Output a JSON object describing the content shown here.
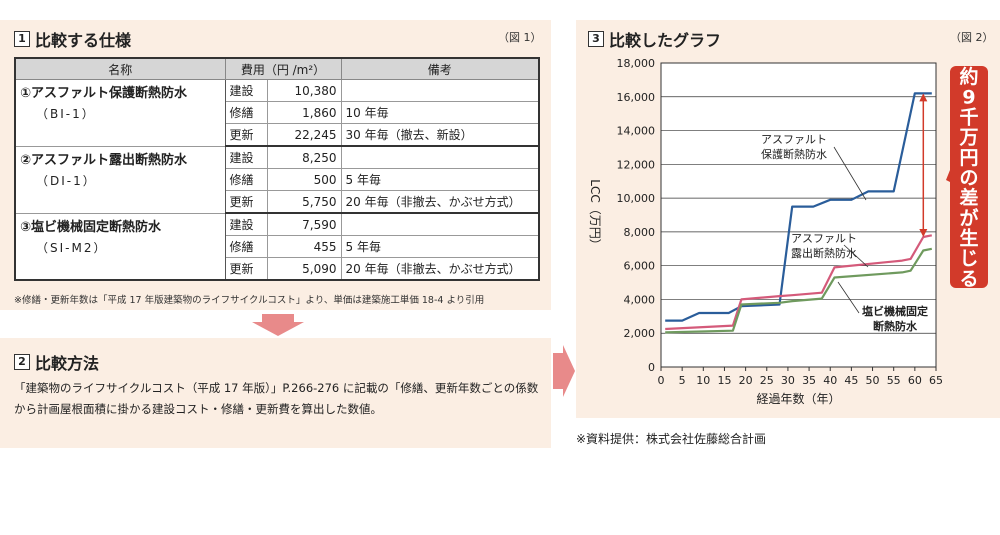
{
  "section1": {
    "number": "1",
    "title": "比較する仕様",
    "fig": "（図 1）",
    "headers": [
      "名称",
      "費用（円 /m²）",
      "備考"
    ],
    "groups": [
      {
        "name": "①アスファルト保護断熱防水",
        "code": "（BI-1）",
        "rows": [
          {
            "item": "建設",
            "cost": "10,380",
            "note": ""
          },
          {
            "item": "修繕",
            "cost": "1,860",
            "note": "10 年毎"
          },
          {
            "item": "更新",
            "cost": "22,245",
            "note": "30 年毎（撤去、新設）"
          }
        ]
      },
      {
        "name": "②アスファルト露出断熱防水",
        "code": "（DI-1）",
        "rows": [
          {
            "item": "建設",
            "cost": "8,250",
            "note": ""
          },
          {
            "item": "修繕",
            "cost": "500",
            "note": "5 年毎"
          },
          {
            "item": "更新",
            "cost": "5,750",
            "note": "20 年毎（非撤去、かぶせ方式）"
          }
        ]
      },
      {
        "name": "③塩ビ機械固定断熱防水",
        "code": "（SI-M2）",
        "rows": [
          {
            "item": "建設",
            "cost": "7,590",
            "note": ""
          },
          {
            "item": "修繕",
            "cost": "455",
            "note": "5 年毎"
          },
          {
            "item": "更新",
            "cost": "5,090",
            "note": "20 年毎（非撤去、かぶせ方式）"
          }
        ]
      }
    ],
    "footnote": "※修繕・更新年数は「平成 17 年版建築物のライフサイクルコスト」より、単価は建築施工単価 18-4 より引用"
  },
  "section2": {
    "number": "2",
    "title": "比較方法",
    "text": "「建築物のライフサイクルコスト（平成 17 年版）」P.266-276 に記載の「修繕、更新年数ごとの係数から計画屋根面積に掛かる建設コスト・修繕・更新費を算出した数値。"
  },
  "section3": {
    "number": "3",
    "title": "比較したグラフ",
    "fig": "（図 2）",
    "callout": "約9千万円の差が生じる",
    "credit": "※資料提供：株式会社佐藤総合計画"
  },
  "colors": {
    "panel": "#fbeee3",
    "arrow": "#e88a8a",
    "callout": "#d23a2a",
    "blue": "#2a5d9a",
    "pink": "#d45a7a",
    "green": "#6f9a5e"
  },
  "chart_data": {
    "type": "line",
    "xlabel": "経過年数（年）",
    "ylabel": "LCC（万円）",
    "xlim": [
      0,
      65
    ],
    "ylim": [
      0,
      18000
    ],
    "xticks": [
      0,
      5,
      10,
      15,
      20,
      25,
      30,
      35,
      40,
      45,
      50,
      55,
      60,
      65
    ],
    "yticks": [
      0,
      2000,
      4000,
      6000,
      8000,
      10000,
      12000,
      14000,
      16000,
      18000
    ],
    "grid": "horizontal",
    "series": [
      {
        "name": "アスファルト保護断熱防水",
        "color": "#2a5d9a",
        "points": [
          [
            1,
            2750
          ],
          [
            5,
            2750
          ],
          [
            9,
            3200
          ],
          [
            16,
            3200
          ],
          [
            19,
            3600
          ],
          [
            28,
            3700
          ],
          [
            31,
            9500
          ],
          [
            36,
            9500
          ],
          [
            40,
            9900
          ],
          [
            45,
            9900
          ],
          [
            49,
            10400
          ],
          [
            55,
            10400
          ],
          [
            60,
            16200
          ],
          [
            64,
            16200
          ]
        ]
      },
      {
        "name": "アスファルト露出断熱防水",
        "color": "#d45a7a",
        "points": [
          [
            1,
            2250
          ],
          [
            17,
            2450
          ],
          [
            19,
            4000
          ],
          [
            28,
            4200
          ],
          [
            31,
            4250
          ],
          [
            38,
            4400
          ],
          [
            41,
            5900
          ],
          [
            57,
            6300
          ],
          [
            59,
            6400
          ],
          [
            62,
            7700
          ],
          [
            64,
            7800
          ]
        ]
      },
      {
        "name": "塩ビ機械固定断熱防水",
        "color": "#6f9a5e",
        "points": [
          [
            1,
            2050
          ],
          [
            17,
            2150
          ],
          [
            19,
            3700
          ],
          [
            28,
            3800
          ],
          [
            31,
            3900
          ],
          [
            38,
            4050
          ],
          [
            41,
            5300
          ],
          [
            57,
            5600
          ],
          [
            59,
            5700
          ],
          [
            62,
            6900
          ],
          [
            64,
            7000
          ]
        ]
      }
    ],
    "annotations": [
      {
        "text": [
          "アスファルト",
          "保護断熱防水"
        ],
        "series": 0
      },
      {
        "text": [
          "アスファルト",
          "露出断熱防水"
        ],
        "series": 1
      },
      {
        "text": [
          "塩ビ機械固定",
          "断熱防水"
        ],
        "series": 2
      }
    ]
  }
}
